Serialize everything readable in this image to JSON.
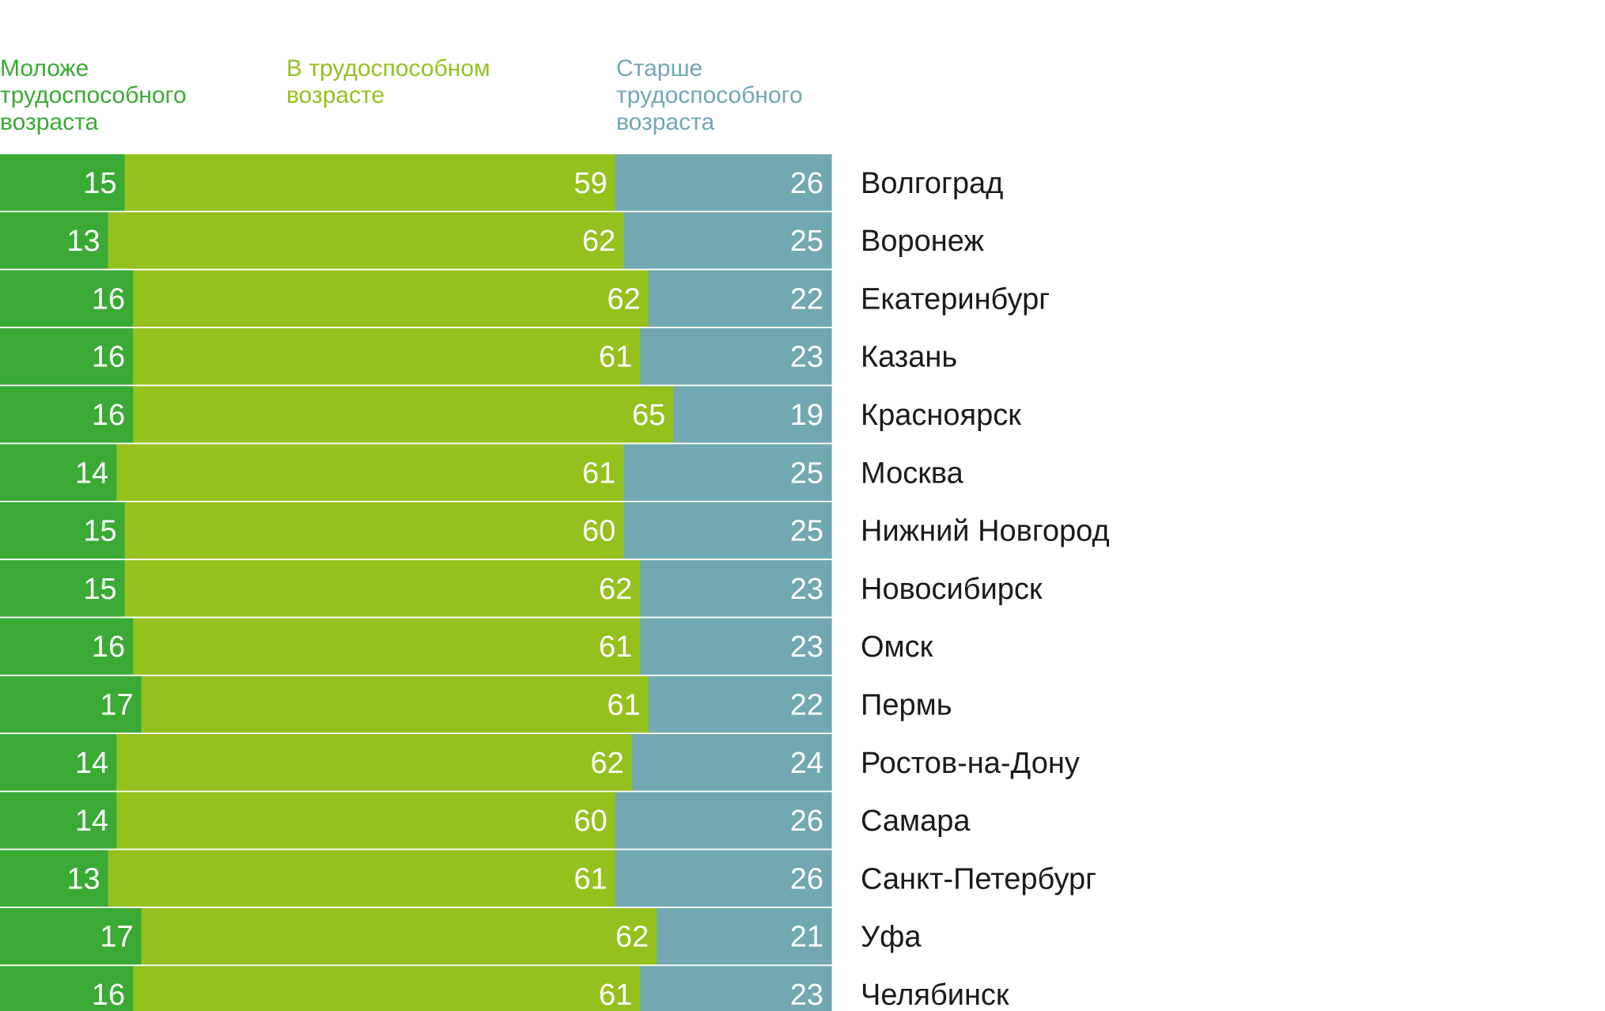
{
  "chart_data": {
    "type": "bar",
    "stacked": true,
    "orientation": "horizontal",
    "normalized_to": 100,
    "categories": [
      "Волгоград",
      "Воронеж",
      "Екатеринбург",
      "Казань",
      "Красноярск",
      "Москва",
      "Нижний Новгород",
      "Новосибирск",
      "Омск",
      "Пермь",
      "Ростов-на-Дону",
      "Самара",
      "Санкт-Петербург",
      "Уфа",
      "Челябинск"
    ],
    "series": [
      {
        "name": "Моложе\nтрудоспособного\nвозраста",
        "color": "#3aaa35",
        "values": [
          15,
          13,
          16,
          16,
          16,
          14,
          15,
          15,
          16,
          17,
          14,
          14,
          13,
          17,
          16
        ]
      },
      {
        "name": "В трудоспособном\nвозрасте",
        "color": "#95c11f",
        "values": [
          59,
          62,
          62,
          61,
          65,
          61,
          60,
          62,
          61,
          61,
          62,
          60,
          61,
          62,
          61
        ]
      },
      {
        "name": "Старше\nтрудоспособного\nвозраста",
        "color": "#71a8b2",
        "values": [
          26,
          25,
          22,
          23,
          19,
          25,
          25,
          23,
          23,
          22,
          24,
          26,
          26,
          21,
          23
        ]
      }
    ],
    "legend_placement": "top",
    "grid": false
  }
}
